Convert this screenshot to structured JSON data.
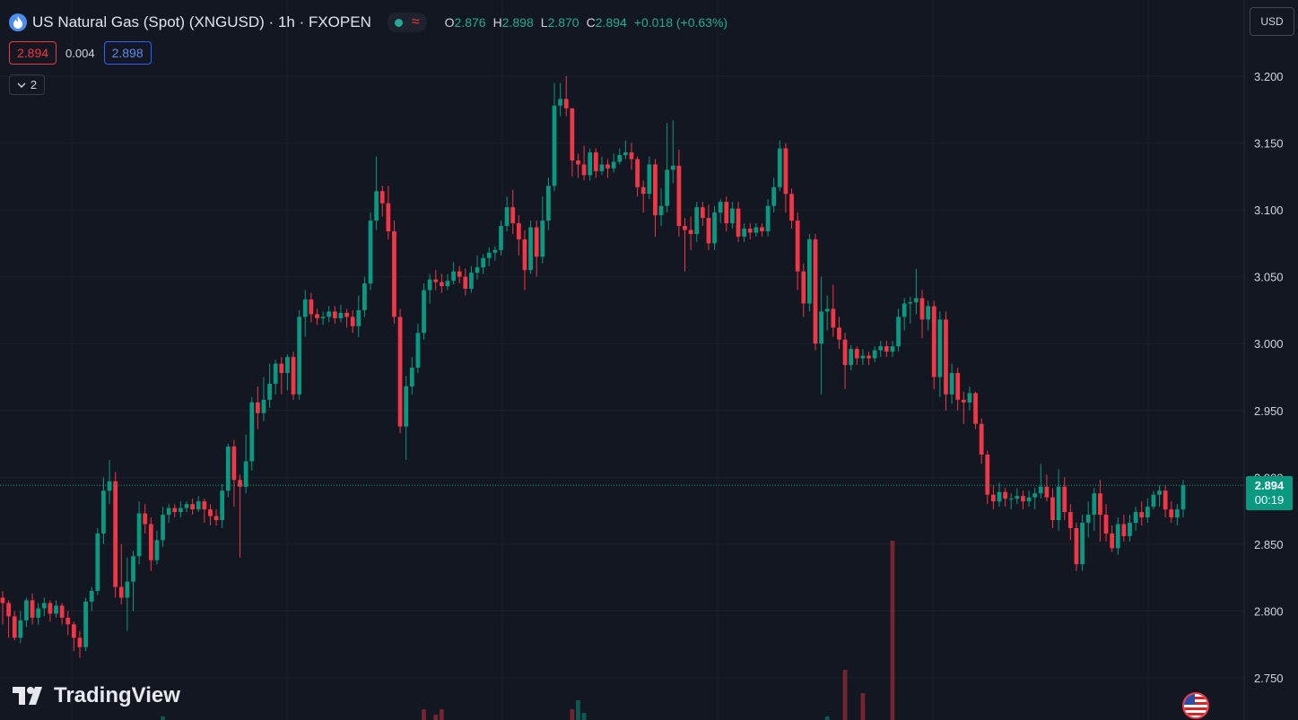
{
  "header": {
    "title": "US Natural Gas (Spot) (XNGUSD) · 1h · FXOPEN",
    "ohlc": [
      {
        "k": "O",
        "v": "2.876"
      },
      {
        "k": "H",
        "v": "2.898"
      },
      {
        "k": "L",
        "v": "2.870"
      },
      {
        "k": "C",
        "v": "2.894"
      }
    ],
    "change": "+0.018 (+0.63%)"
  },
  "prices": {
    "bid": "2.894",
    "spread": "0.004",
    "ask": "2.898"
  },
  "collapse_count": "2",
  "currency": "USD",
  "last_tag": {
    "price": "2.894",
    "countdown": "00:19"
  },
  "branding": "TradingView",
  "colors": {
    "up": "#089981",
    "down": "#f23645",
    "background": "#131722"
  },
  "chart_data": {
    "type": "candlestick",
    "yaxis": {
      "ticks": [
        "3.200",
        "3.150",
        "3.100",
        "3.050",
        "3.000",
        "2.950",
        "2.900",
        "2.850",
        "2.800",
        "2.750"
      ],
      "range": [
        2.72,
        3.23
      ]
    },
    "last_price_line": 2.894,
    "candles": [
      [
        2.81,
        2.806,
        2.815,
        2.79
      ],
      [
        2.806,
        2.796,
        2.808,
        2.78
      ],
      [
        2.796,
        2.78,
        2.8,
        2.778
      ],
      [
        2.78,
        2.793,
        2.8,
        2.776
      ],
      [
        2.793,
        2.808,
        2.81,
        2.788
      ],
      [
        2.808,
        2.795,
        2.813,
        2.79
      ],
      [
        2.795,
        2.802,
        2.806,
        2.79
      ],
      [
        2.802,
        2.806,
        2.81,
        2.796
      ],
      [
        2.806,
        2.798,
        2.808,
        2.792
      ],
      [
        2.798,
        2.804,
        2.808,
        2.795
      ],
      [
        2.804,
        2.795,
        2.806,
        2.79
      ],
      [
        2.795,
        2.79,
        2.8,
        2.782
      ],
      [
        2.79,
        2.78,
        2.792,
        2.77
      ],
      [
        2.78,
        2.773,
        2.785,
        2.765
      ],
      [
        2.773,
        2.807,
        2.81,
        2.77
      ],
      [
        2.807,
        2.815,
        2.818,
        2.8
      ],
      [
        2.815,
        2.858,
        2.862,
        2.812
      ],
      [
        2.858,
        2.89,
        2.9,
        2.85
      ],
      [
        2.89,
        2.897,
        2.913,
        2.88
      ],
      [
        2.897,
        2.818,
        2.904,
        2.81
      ],
      [
        2.818,
        2.81,
        2.85,
        2.805
      ],
      [
        2.81,
        2.822,
        2.84,
        2.785
      ],
      [
        2.822,
        2.841,
        2.845,
        2.8
      ],
      [
        2.841,
        2.873,
        2.882,
        2.835
      ],
      [
        2.873,
        2.865,
        2.88,
        2.858
      ],
      [
        2.865,
        2.838,
        2.87,
        2.83
      ],
      [
        2.838,
        2.853,
        2.86,
        2.835
      ],
      [
        2.853,
        2.872,
        2.878,
        2.848
      ],
      [
        2.872,
        2.877,
        2.88,
        2.866
      ],
      [
        2.877,
        2.874,
        2.88,
        2.87
      ],
      [
        2.874,
        2.877,
        2.882,
        2.87
      ],
      [
        2.877,
        2.88,
        2.882,
        2.874
      ],
      [
        2.88,
        2.876,
        2.884,
        2.872
      ],
      [
        2.876,
        2.882,
        2.886,
        2.874
      ],
      [
        2.882,
        2.876,
        2.884,
        2.866
      ],
      [
        2.876,
        2.871,
        2.88,
        2.864
      ],
      [
        2.871,
        2.868,
        2.876,
        2.864
      ],
      [
        2.868,
        2.89,
        2.895,
        2.862
      ],
      [
        2.89,
        2.923,
        2.925,
        2.885
      ],
      [
        2.923,
        2.898,
        2.928,
        2.878
      ],
      [
        2.898,
        2.893,
        2.902,
        2.84
      ],
      [
        2.893,
        2.912,
        2.932,
        2.888
      ],
      [
        2.912,
        2.956,
        2.96,
        2.905
      ],
      [
        2.956,
        2.948,
        2.968,
        2.936
      ],
      [
        2.948,
        2.958,
        2.975,
        2.942
      ],
      [
        2.958,
        2.97,
        2.985,
        2.952
      ],
      [
        2.97,
        2.985,
        2.988,
        2.962
      ],
      [
        2.985,
        2.978,
        2.99,
        2.962
      ],
      [
        2.978,
        2.99,
        2.992,
        2.965
      ],
      [
        2.99,
        2.962,
        2.994,
        2.958
      ],
      [
        2.962,
        3.02,
        3.025,
        2.958
      ],
      [
        3.02,
        3.033,
        3.04,
        3.005
      ],
      [
        3.033,
        3.022,
        3.038,
        3.016
      ],
      [
        3.022,
        3.019,
        3.026,
        3.014
      ],
      [
        3.019,
        3.02,
        3.024,
        3.014
      ],
      [
        3.02,
        3.024,
        3.028,
        3.016
      ],
      [
        3.024,
        3.019,
        3.028,
        3.015
      ],
      [
        3.019,
        3.023,
        3.029,
        3.016
      ],
      [
        3.023,
        3.02,
        3.026,
        3.012
      ],
      [
        3.02,
        3.013,
        3.025,
        3.008
      ],
      [
        3.013,
        3.025,
        3.036,
        3.005
      ],
      [
        3.025,
        3.045,
        3.05,
        3.02
      ],
      [
        3.045,
        3.092,
        3.098,
        3.04
      ],
      [
        3.092,
        3.114,
        3.14,
        3.085
      ],
      [
        3.114,
        3.105,
        3.118,
        3.095
      ],
      [
        3.105,
        3.084,
        3.118,
        3.078
      ],
      [
        3.084,
        3.02,
        3.092,
        3.015
      ],
      [
        3.02,
        2.938,
        3.026,
        2.933
      ],
      [
        2.938,
        2.968,
        2.976,
        2.913
      ],
      [
        2.968,
        2.982,
        2.99,
        2.962
      ],
      [
        2.982,
        3.008,
        3.015,
        2.978
      ],
      [
        3.008,
        3.04,
        3.045,
        3.003
      ],
      [
        3.04,
        3.048,
        3.052,
        3.03
      ],
      [
        3.048,
        3.046,
        3.055,
        3.04
      ],
      [
        3.046,
        3.043,
        3.052,
        3.038
      ],
      [
        3.043,
        3.047,
        3.052,
        3.04
      ],
      [
        3.047,
        3.054,
        3.061,
        3.044
      ],
      [
        3.054,
        3.05,
        3.058,
        3.045
      ],
      [
        3.05,
        3.041,
        3.056,
        3.036
      ],
      [
        3.041,
        3.053,
        3.058,
        3.038
      ],
      [
        3.053,
        3.057,
        3.066,
        3.048
      ],
      [
        3.057,
        3.064,
        3.067,
        3.052
      ],
      [
        3.064,
        3.068,
        3.072,
        3.058
      ],
      [
        3.068,
        3.07,
        3.073,
        3.062
      ],
      [
        3.07,
        3.088,
        3.092,
        3.066
      ],
      [
        3.088,
        3.102,
        3.11,
        3.084
      ],
      [
        3.102,
        3.09,
        3.115,
        3.082
      ],
      [
        3.09,
        3.078,
        3.096,
        3.066
      ],
      [
        3.078,
        3.055,
        3.085,
        3.04
      ],
      [
        3.055,
        3.087,
        3.092,
        3.052
      ],
      [
        3.087,
        3.065,
        3.092,
        3.05
      ],
      [
        3.065,
        3.092,
        3.11,
        3.06
      ],
      [
        3.092,
        3.118,
        3.124,
        3.085
      ],
      [
        3.118,
        3.178,
        3.195,
        3.114
      ],
      [
        3.178,
        3.183,
        3.195,
        3.17
      ],
      [
        3.183,
        3.176,
        3.2,
        3.17
      ],
      [
        3.176,
        3.137,
        3.14,
        3.125
      ],
      [
        3.137,
        3.134,
        3.142,
        3.124
      ],
      [
        3.134,
        3.126,
        3.148,
        3.122
      ],
      [
        3.126,
        3.143,
        3.146,
        3.122
      ],
      [
        3.143,
        3.129,
        3.146,
        3.124
      ],
      [
        3.129,
        3.134,
        3.14,
        3.126
      ],
      [
        3.134,
        3.131,
        3.138,
        3.124
      ],
      [
        3.131,
        3.136,
        3.142,
        3.128
      ],
      [
        3.136,
        3.141,
        3.146,
        3.134
      ],
      [
        3.141,
        3.143,
        3.152,
        3.138
      ],
      [
        3.143,
        3.138,
        3.15,
        3.13
      ],
      [
        3.138,
        3.117,
        3.14,
        3.11
      ],
      [
        3.117,
        3.112,
        3.122,
        3.098
      ],
      [
        3.112,
        3.134,
        3.14,
        3.108
      ],
      [
        3.134,
        3.096,
        3.138,
        3.08
      ],
      [
        3.096,
        3.103,
        3.116,
        3.088
      ],
      [
        3.103,
        3.13,
        3.165,
        3.098
      ],
      [
        3.13,
        3.133,
        3.167,
        3.12
      ],
      [
        3.133,
        3.088,
        3.145,
        3.08
      ],
      [
        3.088,
        3.085,
        3.094,
        3.054
      ],
      [
        3.085,
        3.082,
        3.095,
        3.07
      ],
      [
        3.082,
        3.102,
        3.106,
        3.076
      ],
      [
        3.102,
        3.094,
        3.106,
        3.088
      ],
      [
        3.094,
        3.075,
        3.104,
        3.07
      ],
      [
        3.075,
        3.098,
        3.103,
        3.07
      ],
      [
        3.098,
        3.106,
        3.108,
        3.09
      ],
      [
        3.106,
        3.09,
        3.11,
        3.084
      ],
      [
        3.09,
        3.101,
        3.106,
        3.086
      ],
      [
        3.101,
        3.08,
        3.106,
        3.076
      ],
      [
        3.08,
        3.086,
        3.09,
        3.076
      ],
      [
        3.086,
        3.083,
        3.09,
        3.078
      ],
      [
        3.083,
        3.087,
        3.09,
        3.08
      ],
      [
        3.087,
        3.084,
        3.09,
        3.08
      ],
      [
        3.084,
        3.103,
        3.108,
        3.08
      ],
      [
        3.103,
        3.117,
        3.124,
        3.098
      ],
      [
        3.117,
        3.146,
        3.152,
        3.114
      ],
      [
        3.146,
        3.112,
        3.15,
        3.098
      ],
      [
        3.112,
        3.092,
        3.116,
        3.086
      ],
      [
        3.092,
        3.054,
        3.098,
        3.04
      ],
      [
        3.054,
        3.03,
        3.06,
        3.02
      ],
      [
        3.03,
        3.078,
        3.082,
        3.024
      ],
      [
        3.078,
        3.0,
        3.082,
        2.995
      ],
      [
        3.0,
        3.024,
        3.05,
        2.962
      ],
      [
        3.024,
        3.026,
        3.036,
        3.01
      ],
      [
        3.026,
        3.012,
        3.044,
        3.005
      ],
      [
        3.012,
        3.003,
        3.02,
        2.996
      ],
      [
        3.003,
        2.984,
        3.008,
        2.966
      ],
      [
        2.984,
        2.996,
        2.999,
        2.98
      ],
      [
        2.996,
        2.989,
        2.998,
        2.984
      ],
      [
        2.989,
        2.991,
        2.996,
        2.984
      ],
      [
        2.991,
        2.989,
        2.994,
        2.984
      ],
      [
        2.989,
        2.995,
        2.998,
        2.986
      ],
      [
        2.995,
        2.998,
        3.002,
        2.99
      ],
      [
        2.998,
        2.994,
        3.002,
        2.99
      ],
      [
        2.994,
        2.998,
        3.002,
        2.99
      ],
      [
        2.998,
        3.02,
        3.026,
        2.994
      ],
      [
        3.02,
        3.03,
        3.034,
        3.01
      ],
      [
        3.03,
        3.031,
        3.035,
        3.015
      ],
      [
        3.031,
        3.034,
        3.056,
        3.022
      ],
      [
        3.034,
        3.018,
        3.04,
        3.004
      ],
      [
        3.018,
        3.028,
        3.032,
        3.01
      ],
      [
        3.028,
        2.975,
        3.032,
        2.966
      ],
      [
        2.975,
        3.018,
        3.024,
        2.96
      ],
      [
        3.018,
        2.962,
        3.024,
        2.95
      ],
      [
        2.962,
        2.978,
        2.985,
        2.955
      ],
      [
        2.978,
        2.958,
        2.982,
        2.95
      ],
      [
        2.958,
        2.956,
        2.964,
        2.94
      ],
      [
        2.956,
        2.963,
        2.968,
        2.95
      ],
      [
        2.963,
        2.94,
        2.964,
        2.936
      ],
      [
        2.94,
        2.917,
        2.944,
        2.91
      ],
      [
        2.917,
        2.887,
        2.92,
        2.88
      ],
      [
        2.887,
        2.882,
        2.894,
        2.876
      ],
      [
        2.882,
        2.889,
        2.896,
        2.878
      ],
      [
        2.889,
        2.884,
        2.892,
        2.878
      ],
      [
        2.884,
        2.884,
        2.888,
        2.876
      ],
      [
        2.884,
        2.886,
        2.892,
        2.88
      ],
      [
        2.886,
        2.882,
        2.89,
        2.876
      ],
      [
        2.882,
        2.885,
        2.89,
        2.878
      ],
      [
        2.885,
        2.888,
        2.892,
        2.876
      ],
      [
        2.888,
        2.893,
        2.91,
        2.884
      ],
      [
        2.893,
        2.885,
        2.902,
        2.882
      ],
      [
        2.885,
        2.868,
        2.892,
        2.862
      ],
      [
        2.868,
        2.893,
        2.906,
        2.86
      ],
      [
        2.893,
        2.874,
        2.9,
        2.868
      ],
      [
        2.874,
        2.862,
        2.88,
        2.853
      ],
      [
        2.862,
        2.835,
        2.866,
        2.83
      ],
      [
        2.835,
        2.866,
        2.872,
        2.83
      ],
      [
        2.866,
        2.872,
        2.882,
        2.855
      ],
      [
        2.872,
        2.888,
        2.892,
        2.86
      ],
      [
        2.888,
        2.872,
        2.898,
        2.852
      ],
      [
        2.872,
        2.858,
        2.88,
        2.852
      ],
      [
        2.858,
        2.847,
        2.864,
        2.844
      ],
      [
        2.847,
        2.865,
        2.87,
        2.842
      ],
      [
        2.865,
        2.856,
        2.872,
        2.852
      ],
      [
        2.856,
        2.866,
        2.872,
        2.852
      ],
      [
        2.866,
        2.874,
        2.878,
        2.86
      ],
      [
        2.874,
        2.87,
        2.882,
        2.864
      ],
      [
        2.87,
        2.878,
        2.884,
        2.866
      ],
      [
        2.878,
        2.887,
        2.89,
        2.876
      ],
      [
        2.887,
        2.89,
        2.894,
        2.878
      ],
      [
        2.89,
        2.876,
        2.894,
        2.87
      ],
      [
        2.876,
        2.87,
        2.882,
        2.866
      ],
      [
        2.87,
        2.876,
        2.88,
        2.864
      ],
      [
        2.876,
        2.894,
        2.898,
        2.87
      ]
    ],
    "volumes": [
      {
        "i": 27,
        "v": 2,
        "dir": "up"
      },
      {
        "i": 71,
        "v": 6,
        "dir": "down"
      },
      {
        "i": 73,
        "v": 3,
        "dir": "down"
      },
      {
        "i": 74,
        "v": 6,
        "dir": "down"
      },
      {
        "i": 96,
        "v": 6,
        "dir": "down"
      },
      {
        "i": 97,
        "v": 11,
        "dir": "up"
      },
      {
        "i": 98,
        "v": 4,
        "dir": "up"
      },
      {
        "i": 139,
        "v": 2,
        "dir": "up"
      },
      {
        "i": 142,
        "v": 28,
        "dir": "down"
      },
      {
        "i": 145,
        "v": 15,
        "dir": "down"
      },
      {
        "i": 150,
        "v": 100,
        "dir": "down"
      }
    ]
  }
}
